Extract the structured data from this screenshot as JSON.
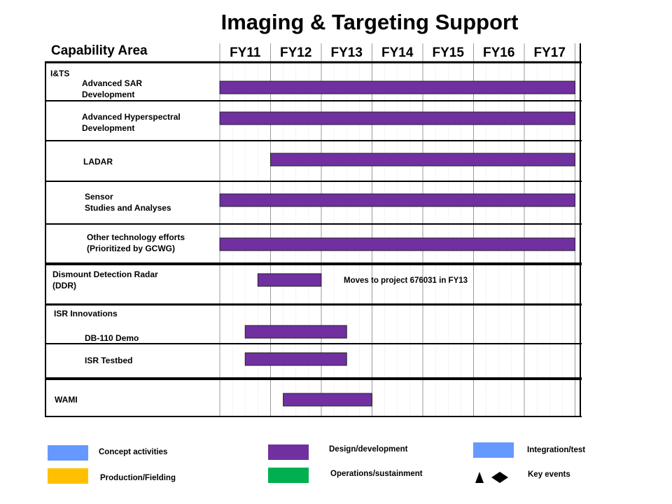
{
  "title": "Imaging & Targeting Support",
  "capability_header": "Capability Area",
  "colors": {
    "design": "#7030A0",
    "concept": "#6699FF",
    "production": "#FFC000",
    "operations": "#00B050",
    "integration": "#6699FF"
  },
  "chart_data": {
    "type": "gantt",
    "title": "Imaging & Targeting Support",
    "years": [
      "FY11",
      "FY12",
      "FY13",
      "FY14",
      "FY15",
      "FY16",
      "FY17"
    ],
    "rows": [
      {
        "label": [
          "I&TS"
        ]
      },
      {
        "label": [
          "Advanced SAR",
          "Development"
        ],
        "start": 2011.0,
        "end": 2018.0
      },
      {
        "label": [
          "Advanced Hyperspectral",
          "Development"
        ],
        "start": 2011.0,
        "end": 2018.0
      },
      {
        "label": [
          "LADAR"
        ],
        "start": 2012.0,
        "end": 2018.0
      },
      {
        "label": [
          "Sensor",
          "Studies and Analyses"
        ],
        "start": 2011.0,
        "end": 2018.0
      },
      {
        "label": [
          "Other technology  efforts",
          "(Prioritized by GCWG)"
        ],
        "start": 2011.0,
        "end": 2018.0
      },
      {
        "label": [
          "Dismount Detection  Radar",
          "(DDR)"
        ],
        "start": 2011.75,
        "end": 2013.0,
        "annotation": "Moves to project 676031 in FY13"
      },
      {
        "label": [
          "ISR Innovations"
        ]
      },
      {
        "label": [
          "DB-110  Demo"
        ],
        "start": 2011.5,
        "end": 2013.5
      },
      {
        "label": [
          "ISR Testbed"
        ],
        "start": 2011.5,
        "end": 2013.5
      },
      {
        "label": [
          "WAMI"
        ],
        "start": 2012.25,
        "end": 2014.0
      }
    ]
  },
  "legend": [
    {
      "label": "Concept activities",
      "color": "#6699FF"
    },
    {
      "label": "Production/Fielding",
      "color": "#FFC000"
    },
    {
      "label": "Design/development",
      "color": "#7030A0"
    },
    {
      "label": "Operations/sustainment",
      "color": "#00B050"
    },
    {
      "label": "Integration/test",
      "color": "#6699FF"
    },
    {
      "label": "Key events",
      "symbols": [
        "triangle",
        "diamond"
      ]
    }
  ]
}
